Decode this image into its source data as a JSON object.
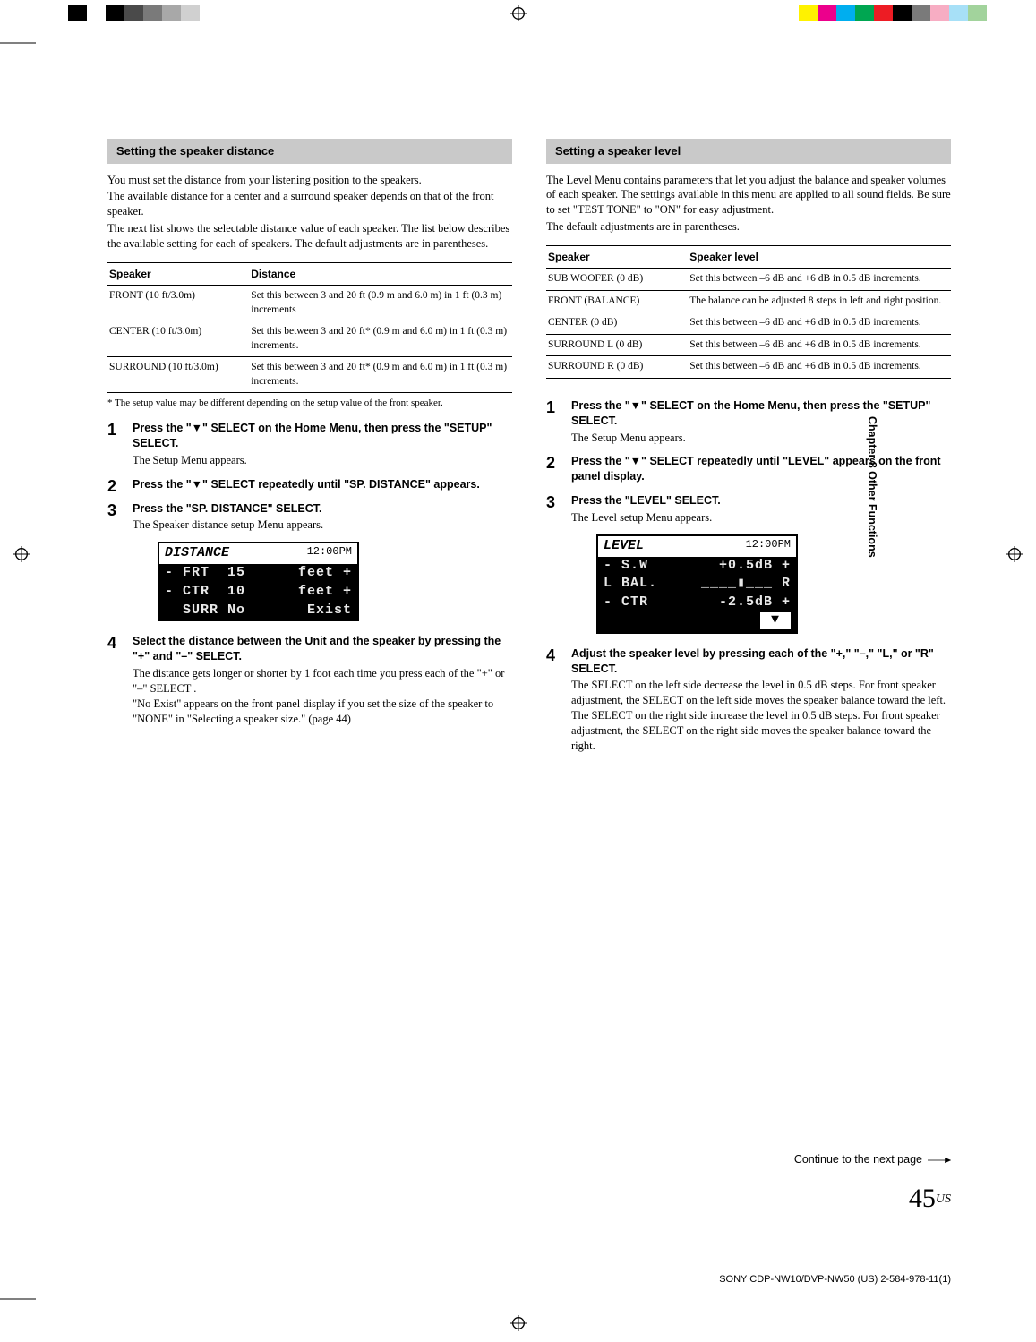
{
  "printerBars": {
    "left": [
      "#ffffff",
      "#000000",
      "#ffffff",
      "#000000",
      "#4a4a4a",
      "#7a7a7a",
      "#a8a8a8",
      "#d0d0d0",
      "#ffffff",
      "#ffffff"
    ],
    "right": [
      "#fff200",
      "#ec008c",
      "#00aeef",
      "#00a651",
      "#ed1c24",
      "#000000",
      "#7a7a7a",
      "#f7adc3",
      "#a7e0f7",
      "#a2d39c"
    ]
  },
  "sideTab": "Chapter 8  Other Functions",
  "left": {
    "heading": "Setting the speaker distance",
    "intro": [
      "You must set the distance from your listening position to the speakers.",
      "The available distance for a center and a surround speaker depends on that of the front speaker.",
      "The next list shows the selectable distance value of each speaker. The list below describes the available setting for each of speakers. The default adjustments are in parentheses."
    ],
    "table": {
      "headers": [
        "Speaker",
        "Distance"
      ],
      "rows": [
        [
          "FRONT (10 ft/3.0m)",
          "Set this between 3 and 20 ft (0.9 m and 6.0 m) in 1 ft (0.3 m) increments"
        ],
        [
          "CENTER (10 ft/3.0m)",
          "Set this between 3 and 20 ft* (0.9 m and 6.0 m) in 1 ft (0.3 m) increments."
        ],
        [
          "SURROUND (10 ft/3.0m)",
          "Set this between 3 and 20 ft* (0.9 m and 6.0 m) in 1 ft (0.3 m) increments."
        ]
      ]
    },
    "footnote": "*  The setup value may be different depending on the setup value of the front speaker.",
    "steps": [
      {
        "head": "Press the \"▼\" SELECT on the Home Menu, then press the \"SETUP\" SELECT.",
        "body": "The Setup Menu appears."
      },
      {
        "head": "Press the \"▼\" SELECT repeatedly until \"SP. DISTANCE\" appears.",
        "body": ""
      },
      {
        "head": "Press the \"SP. DISTANCE\" SELECT.",
        "body": "The Speaker distance setup Menu appears."
      },
      {
        "head": "Select the distance between the Unit and the speaker by pressing the \"+\" and \"–\" SELECT.",
        "body": "The distance gets longer or shorter by 1 foot each time you press each of the \"+\" or \"–\" SELECT .\n\"No Exist\" appears on the front panel display if you set the size of the speaker to \"NONE\" in \"Selecting a speaker size.\" (page 44)"
      }
    ],
    "lcd": {
      "title": "DISTANCE",
      "time": "12:00PM",
      "rows": [
        {
          "l": "- FRT",
          "c": "15",
          "r": "feet +"
        },
        {
          "l": "- CTR",
          "c": "10",
          "r": "feet +"
        },
        {
          "l": "  SURR",
          "c": "No",
          "r": "Exist"
        }
      ]
    }
  },
  "right": {
    "heading": "Setting a speaker level",
    "intro": [
      "The Level Menu contains parameters that let you adjust the balance and speaker volumes of each speaker. The settings available in this menu are applied to all sound fields. Be sure to set \"TEST TONE\" to \"ON\" for easy adjustment.",
      "The default adjustments are in parentheses."
    ],
    "table": {
      "headers": [
        "Speaker",
        "Speaker level"
      ],
      "rows": [
        [
          "SUB WOOFER (0 dB)",
          "Set this between –6 dB and +6 dB in 0.5 dB increments."
        ],
        [
          "FRONT (BALANCE)",
          "The balance can be adjusted 8 steps in left and right position."
        ],
        [
          "CENTER (0 dB)",
          "Set this between –6 dB and +6 dB in 0.5 dB increments."
        ],
        [
          "SURROUND L (0 dB)",
          "Set this between –6 dB and +6 dB in 0.5 dB increments."
        ],
        [
          "SURROUND R (0 dB)",
          "Set this between –6 dB and +6 dB in 0.5 dB increments."
        ]
      ]
    },
    "steps": [
      {
        "head": "Press the \"▼\" SELECT on the Home Menu, then press the \"SETUP\" SELECT.",
        "body": " The Setup Menu appears."
      },
      {
        "head": "Press the \"▼\" SELECT repeatedly until \"LEVEL\" appears on the front panel display.",
        "body": ""
      },
      {
        "head": "Press the \"LEVEL\" SELECT.",
        "body": " The Level setup Menu appears."
      },
      {
        "head": "Adjust the speaker level by pressing each of the \"+,\"  \"–,\" \"L,\" or \"R\" SELECT.",
        "body": "The SELECT on the left side decrease the level in 0.5 dB steps. For front speaker adjustment, the SELECT on the left side moves the speaker balance toward the left.\nThe SELECT on the right side increase the level in 0.5 dB steps. For front speaker adjustment, the SELECT on the right side moves the speaker balance toward the right."
      }
    ],
    "lcd": {
      "title": "LEVEL",
      "time": "12:00PM",
      "rows": [
        {
          "l": "- S.W",
          "r": "+0.5dB +"
        },
        {
          "l": "L BAL.",
          "r": "R",
          "bal": true
        },
        {
          "l": "- CTR",
          "r": "-2.5dB +"
        }
      ]
    }
  },
  "continue": "Continue to the next page",
  "pageNumber": {
    "num": "45",
    "suffix": "US"
  },
  "docCode": "SONY CDP-NW10/DVP-NW50 (US) 2-584-978-11(1)"
}
